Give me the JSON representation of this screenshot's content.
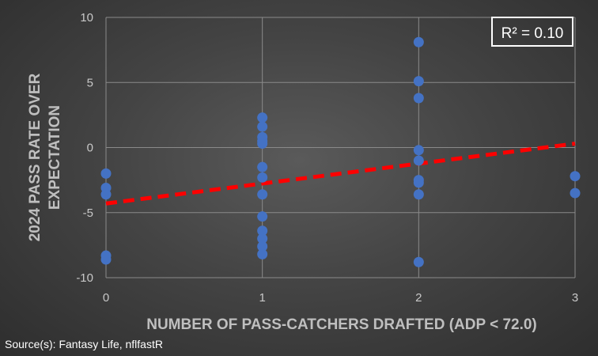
{
  "chart_data": {
    "type": "scatter",
    "title": "",
    "xlabel": "NUMBER OF PASS-CATCHERS DRAFTED (ADP < 72.0)",
    "ylabel_lines": [
      "2024 PASS RATE OVER",
      "EXPECTATION"
    ],
    "xlim": [
      0,
      3
    ],
    "ylim": [
      -10,
      10
    ],
    "x_ticks": [
      0,
      1,
      2,
      3
    ],
    "y_ticks": [
      10,
      5,
      0,
      -5,
      -10
    ],
    "grid": true,
    "annotation": "R² = 0.10",
    "point_color": "#4472C4",
    "trendline_color": "#FF0000",
    "trendline": {
      "x": [
        0,
        3
      ],
      "y": [
        -4.3,
        0.3
      ]
    },
    "points": [
      {
        "x": 0,
        "y": -2.0
      },
      {
        "x": 0,
        "y": -3.1
      },
      {
        "x": 0,
        "y": -3.6
      },
      {
        "x": 0,
        "y": -8.3
      },
      {
        "x": 0,
        "y": -8.6
      },
      {
        "x": 1,
        "y": 2.3
      },
      {
        "x": 1,
        "y": 1.6
      },
      {
        "x": 1,
        "y": 0.8
      },
      {
        "x": 1,
        "y": 0.5
      },
      {
        "x": 1,
        "y": 0.3
      },
      {
        "x": 1,
        "y": -1.5
      },
      {
        "x": 1,
        "y": -2.3
      },
      {
        "x": 1,
        "y": -3.6
      },
      {
        "x": 1,
        "y": -5.3
      },
      {
        "x": 1,
        "y": -6.4
      },
      {
        "x": 1,
        "y": -7.0
      },
      {
        "x": 1,
        "y": -7.6
      },
      {
        "x": 1,
        "y": -8.2
      },
      {
        "x": 2,
        "y": 8.1
      },
      {
        "x": 2,
        "y": 5.1
      },
      {
        "x": 2,
        "y": 3.8
      },
      {
        "x": 2,
        "y": -0.2
      },
      {
        "x": 2,
        "y": -1.0
      },
      {
        "x": 2,
        "y": -2.5
      },
      {
        "x": 2,
        "y": -2.7
      },
      {
        "x": 2,
        "y": -3.6
      },
      {
        "x": 2,
        "y": -8.8
      },
      {
        "x": 3,
        "y": -2.2
      },
      {
        "x": 3,
        "y": -3.5
      }
    ]
  },
  "source": "Source(s): Fantasy Life, nflfastR"
}
